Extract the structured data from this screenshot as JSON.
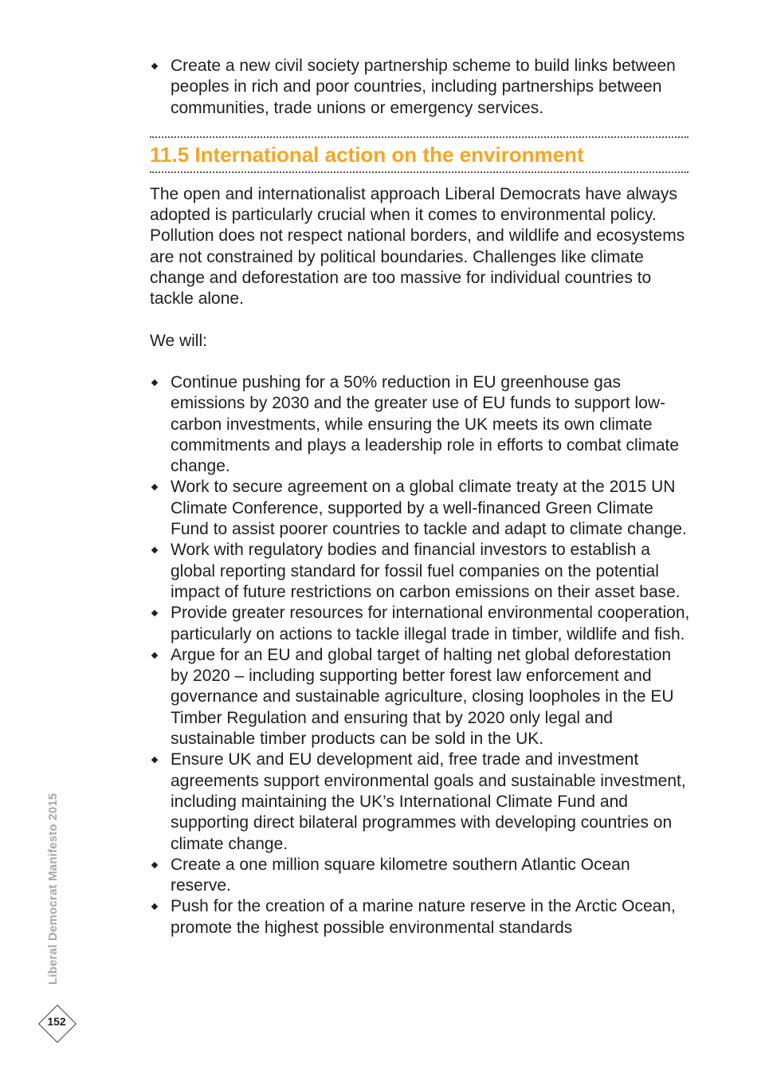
{
  "top_list": [
    "Create a new civil society partnership scheme to build links between peoples in rich and poor countries, including partnerships between communities, trade unions or emergency services."
  ],
  "section": {
    "heading": "11.5 International action on the environment",
    "intro": "The open and internationalist approach Liberal Democrats have always adopted is particularly crucial when it comes to environmental policy. Pollution does not respect national borders, and wildlife and ecosystems are not constrained by political boundaries. Challenges like climate change and deforestation are too massive for individual countries to tackle alone.",
    "we_will": "We will:",
    "items": [
      "Continue pushing for a 50% reduction in EU greenhouse gas emissions by 2030 and the greater use of EU funds to support low-carbon investments, while ensuring the UK meets its own climate commitments and plays a leadership role in efforts to combat climate change.",
      "Work to secure agreement on a global climate treaty at the 2015 UN Climate Conference, supported by a well-financed Green Climate Fund to assist poorer countries to tackle and adapt to climate change.",
      "Work with regulatory bodies and financial investors to establish a global reporting standard for fossil fuel companies on the potential impact of future restrictions on carbon emissions on their asset base.",
      "Provide greater resources for international environmental cooperation, particularly on actions to tackle illegal trade in timber, wildlife and fish.",
      "Argue for an EU and global target of halting net global deforestation by 2020 – including supporting better forest law enforcement and governance and sustainable agriculture, closing loopholes in the EU Timber Regulation and ensuring that by 2020 only legal and sustainable timber products can be sold in the UK.",
      "Ensure UK and EU development aid, free trade and investment agreements support environmental goals and sustainable investment, including maintaining the UK’s International Climate Fund and supporting direct bilateral programmes with developing countries on climate change.",
      "Create a one million square kilometre southern Atlantic Ocean reserve.",
      "Push for the creation of a marine nature reserve in the Arctic Ocean, promote the highest possible environmental standards"
    ]
  },
  "sidebar": {
    "title": "Liberal Democrat Manifesto 2015"
  },
  "page_number": "152",
  "colors": {
    "heading": "#f5a623",
    "text": "#1f1f1f",
    "sidebar": "#a8a8a8"
  }
}
